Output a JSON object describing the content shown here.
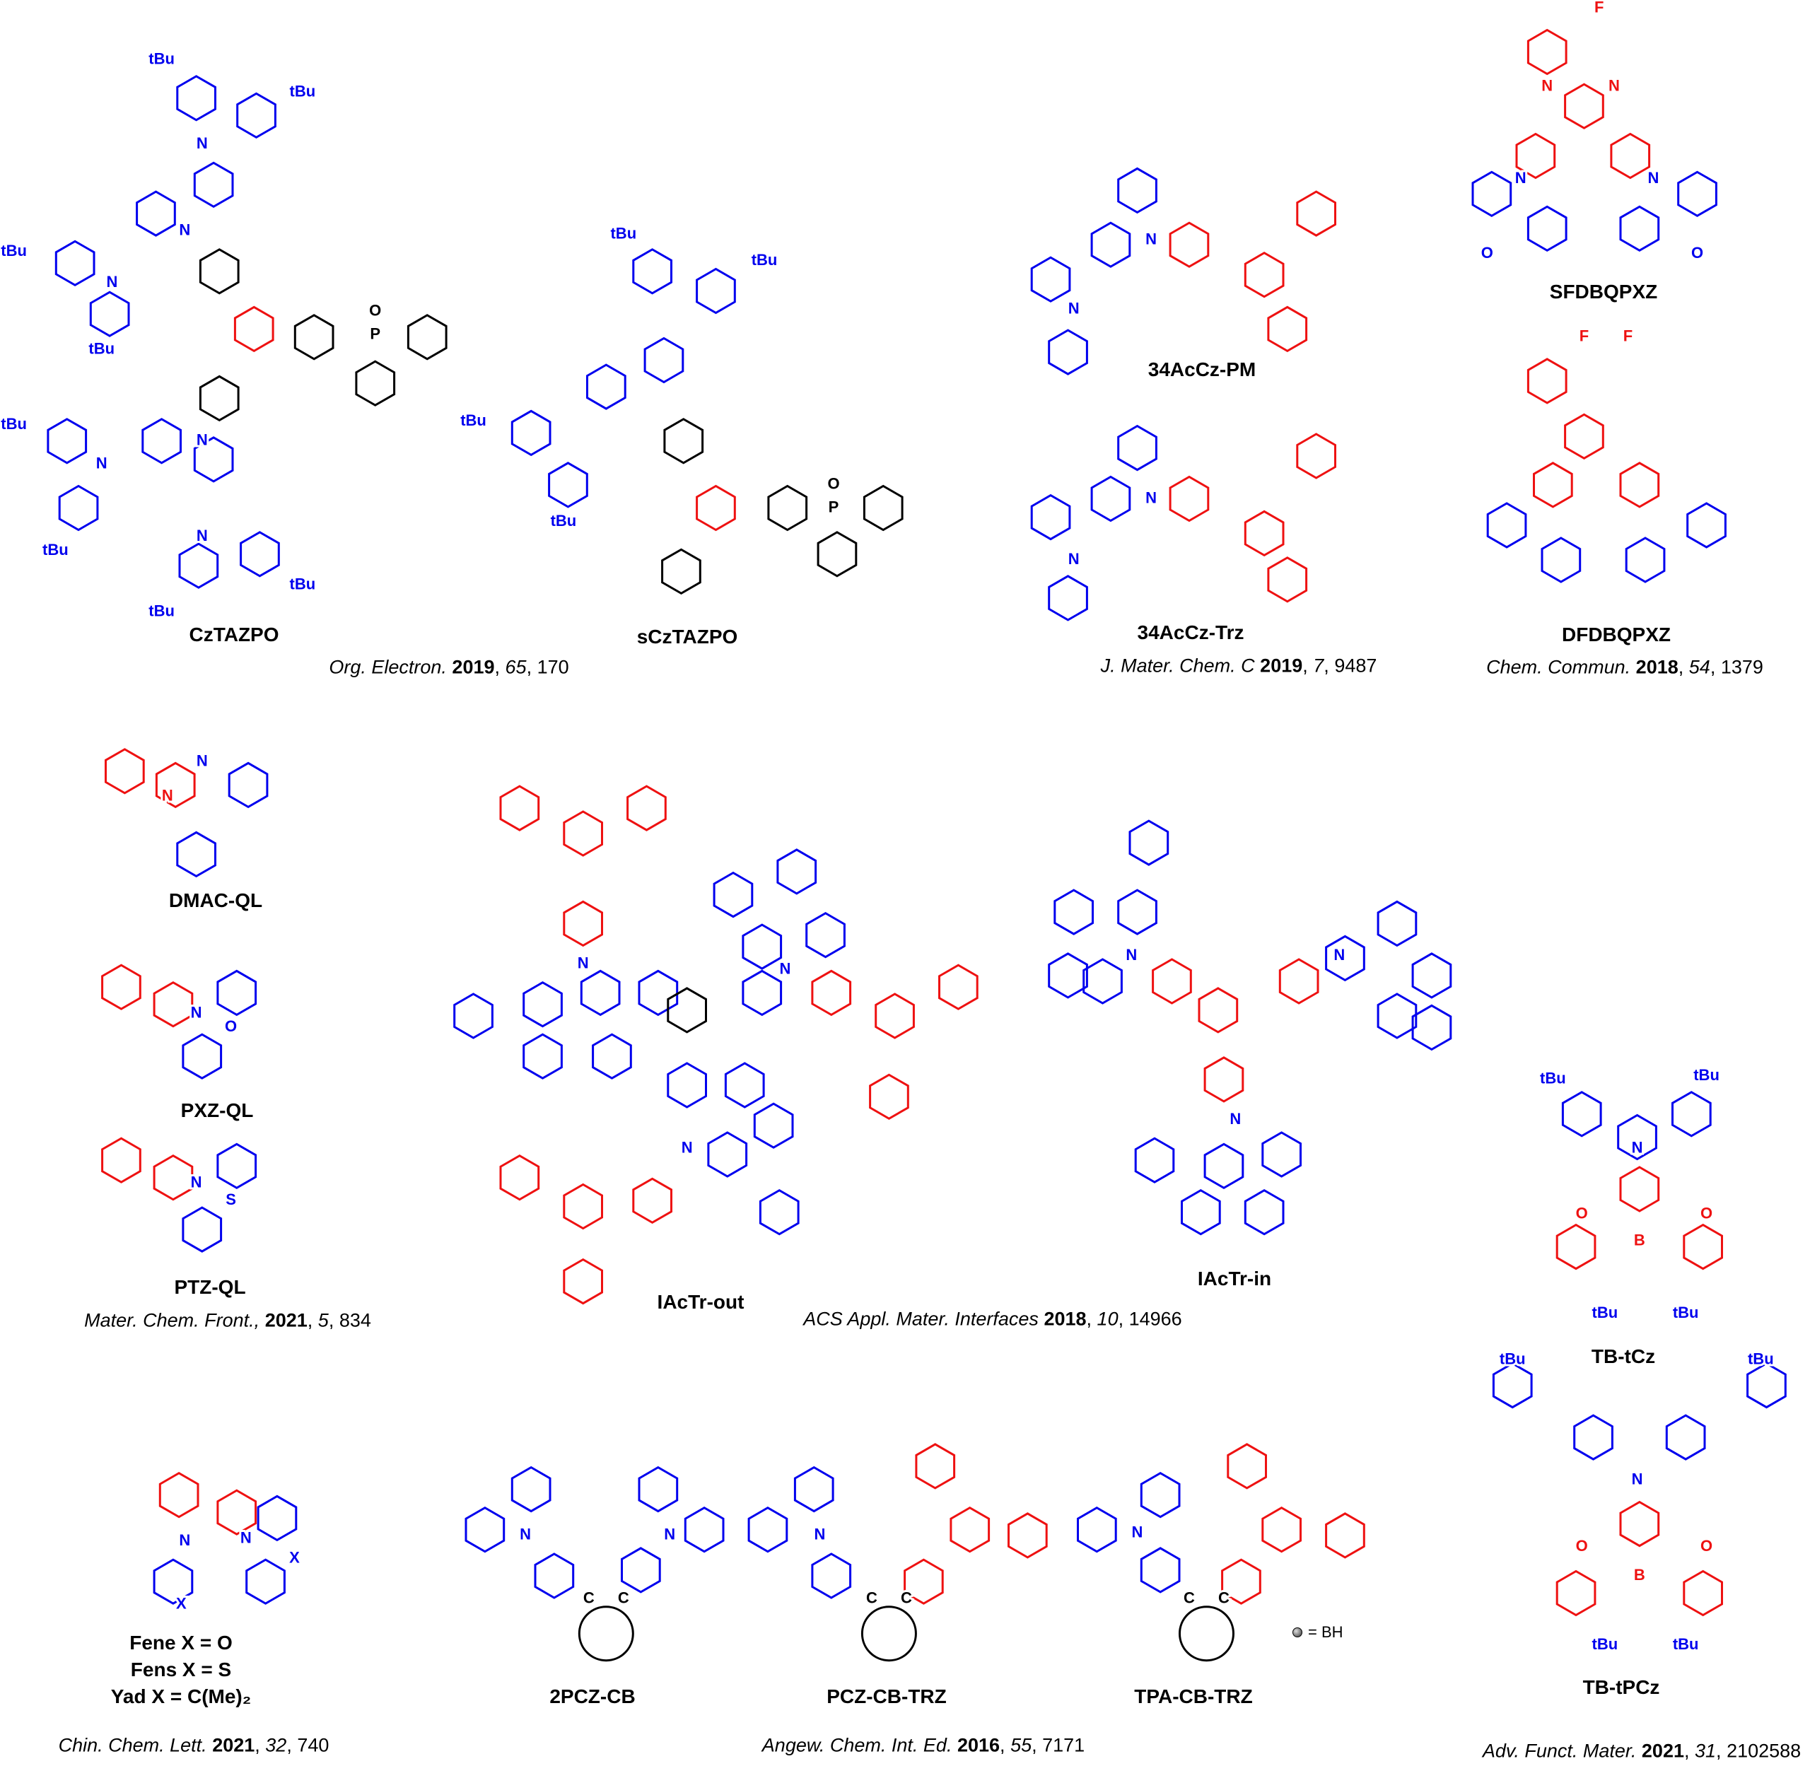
{
  "colors": {
    "donor": "#0000ee",
    "acceptor": "#ee1111",
    "linker": "#000000"
  },
  "atoms": {
    "N": "N",
    "O": "O",
    "S": "S",
    "B": "B",
    "P": "P",
    "F": "F",
    "tBu": "tBu",
    "X": "X",
    "C": "C"
  },
  "compounds": {
    "cztazpo": "CzTAZPO",
    "scztazpo": "sCzTAZPO",
    "acczpm": "34AcCz-PM",
    "acczt": "34AcCz-Trz",
    "sfdbqpxz": "SFDBQPXZ",
    "dfdbqpxz": "DFDBQPXZ",
    "dmacql": "DMAC-QL",
    "pxzql": "PXZ-QL",
    "ptzql": "PTZ-QL",
    "iactrout": "IAcTr-out",
    "iactrin": "IAcTr-in",
    "tbtcz": "TB-tCz",
    "tbtpcz": "TB-tPCz",
    "pcz2cb": "2PCZ-CB",
    "pczcbtrz": "PCZ-CB-TRZ",
    "tpacbtrz": "TPA-CB-TRZ"
  },
  "fene_series": [
    "Fene X = O",
    "Fens X = S",
    "Yad X = C(Me)₂"
  ],
  "bh_legend": "= BH",
  "citations": {
    "orgel": {
      "journal": "Org. Electron.",
      "year": "2019",
      "volume": "65",
      "pages": "170"
    },
    "jmcc": {
      "journal": "J. Mater. Chem. C",
      "year": "2019",
      "volume": "7",
      "pages": "9487"
    },
    "chemcomm": {
      "journal": "Chem. Commun.",
      "year": "2018",
      "volume": "54",
      "pages": "1379"
    },
    "mcf": {
      "journal": "Mater. Chem. Front.,",
      "year": "2021",
      "volume": "5",
      "pages": "834"
    },
    "acsami": {
      "journal": "ACS Appl. Mater. Interfaces",
      "year": "2018",
      "volume": "10",
      "pages": "14966"
    },
    "ccl": {
      "journal": "Chin. Chem. Lett.",
      "year": "2021",
      "volume": "32",
      "pages": "740"
    },
    "angew": {
      "journal": "Angew. Chem. Int. Ed.",
      "year": "2016",
      "volume": "55",
      "pages": "7171"
    },
    "afm": {
      "journal": "Adv. Funct. Mater.",
      "year": "2021",
      "volume": "31",
      "pages": "2102588"
    }
  }
}
